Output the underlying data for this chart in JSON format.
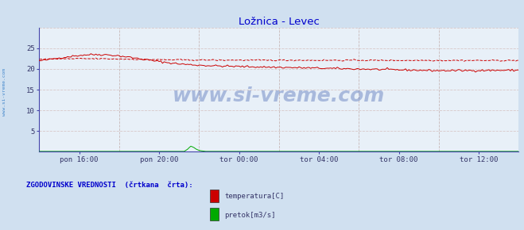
{
  "title": "Ložnica - Levec",
  "title_color": "#0000cc",
  "background_color": "#d0e0f0",
  "plot_bg_color": "#e8f0f8",
  "xlim": [
    0,
    288
  ],
  "ylim": [
    0,
    30
  ],
  "yticks": [
    5,
    10,
    15,
    20,
    25
  ],
  "xtick_labels": [
    "pon 16:00",
    "pon 20:00",
    "tor 00:00",
    "tor 04:00",
    "tor 08:00",
    "tor 12:00"
  ],
  "xtick_positions": [
    0,
    48,
    96,
    144,
    192,
    240,
    288
  ],
  "xtick_display_positions": [
    24,
    72,
    120,
    168,
    216,
    264
  ],
  "watermark_text": "www.si-vreme.com",
  "watermark_color": "#3355aa",
  "watermark_alpha": 0.35,
  "side_label": "www.si-vreme.com",
  "side_label_color": "#4488cc",
  "legend_title": "ZGODOVINSKE VREDNOSTI  (črtkana  črta):",
  "legend_title_color": "#0000cc",
  "legend_items": [
    "temperatura[C]",
    "pretok[m3/s]"
  ],
  "legend_colors": [
    "#cc0000",
    "#00aa00"
  ],
  "temp_color": "#cc0000",
  "flow_color": "#00aa00",
  "axis_color": "#4444aa",
  "tick_color": "#333366",
  "grid_color_v": "#c8b8b8",
  "grid_color_h": "#d8c8c8"
}
